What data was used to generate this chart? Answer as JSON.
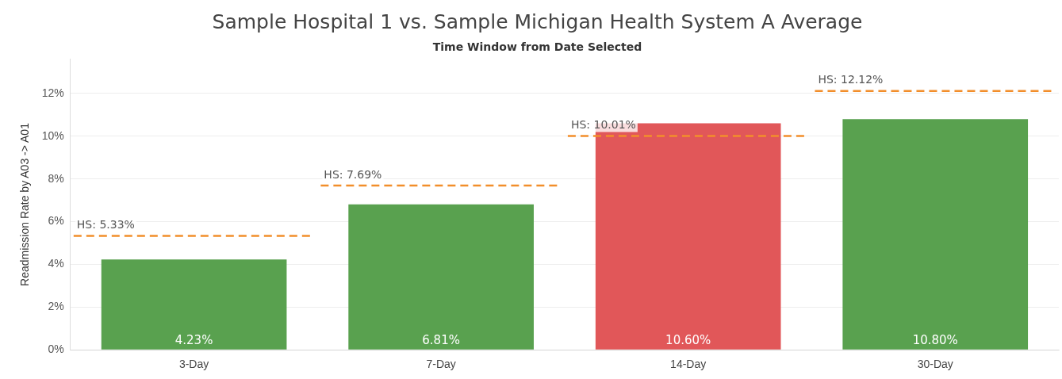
{
  "chart_data": {
    "type": "bar",
    "title": "Sample Hospital 1 vs. Sample Michigan Health System A Average",
    "subtitle": "Time Window from Date Selected",
    "ylabel": "Readmission Rate by A03 -> A01",
    "categories": [
      "3-Day",
      "7-Day",
      "14-Day",
      "30-Day"
    ],
    "series": [
      {
        "colors": [
          "#59a14f",
          "#59a14f",
          "#e15759",
          "#59a14f"
        ],
        "values": [
          4.23,
          6.81,
          10.6,
          10.8
        ],
        "value_labels": [
          "4.23%",
          "6.81%",
          "10.60%",
          "10.80%"
        ]
      }
    ],
    "ref_lines": [
      {
        "axis": "y",
        "value": 5.33,
        "label": "HS: 5.33%",
        "color": "#f28e2b",
        "line_style": "dashed"
      },
      {
        "axis": "y",
        "value": 7.69,
        "label": "HS: 7.69%",
        "color": "#f28e2b",
        "line_style": "dashed"
      },
      {
        "axis": "y",
        "value": 10.01,
        "label": "HS: 10.01%",
        "color": "#f28e2b",
        "line_style": "dashed"
      },
      {
        "axis": "y",
        "value": 12.12,
        "label": "HS: 12.12%",
        "color": "#f28e2b",
        "line_style": "dashed"
      }
    ],
    "ylim": [
      0,
      13.6
    ],
    "yticks": [
      {
        "value": 0,
        "label": "0%"
      },
      {
        "value": 2,
        "label": "2%"
      },
      {
        "value": 4,
        "label": "4%"
      },
      {
        "value": 6,
        "label": "6%"
      },
      {
        "value": 8,
        "label": "8%"
      },
      {
        "value": 10,
        "label": "10%"
      },
      {
        "value": 12,
        "label": "12%"
      }
    ],
    "grid": "y",
    "legend": false
  }
}
